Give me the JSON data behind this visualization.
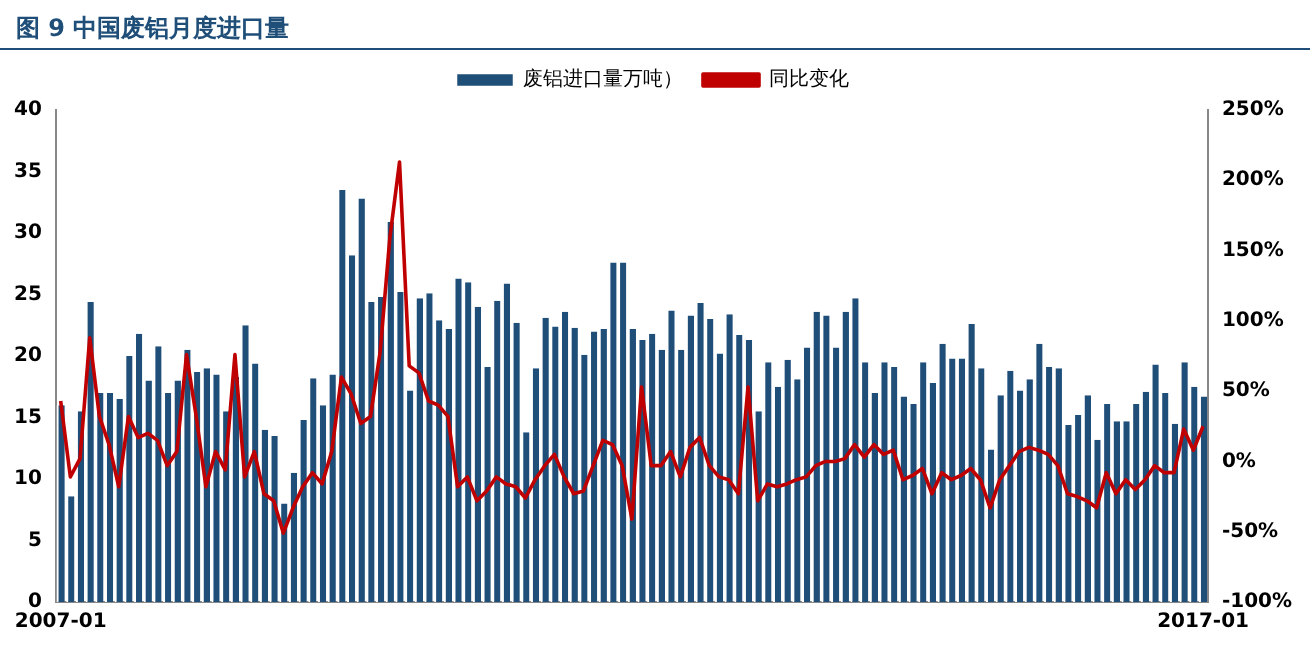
{
  "chart_data": {
    "type": "bar",
    "title": "图 9 中国废铝月度进口量",
    "categories": [
      "2007-01",
      null,
      null,
      null,
      null,
      null,
      null,
      null,
      null,
      null,
      null,
      null,
      null,
      null,
      null,
      null,
      null,
      null,
      null,
      null,
      null,
      null,
      null,
      null,
      null,
      null,
      null,
      null,
      null,
      null,
      null,
      null,
      null,
      null,
      null,
      null,
      null,
      null,
      null,
      null,
      null,
      null,
      null,
      null,
      null,
      null,
      null,
      null,
      null,
      null,
      null,
      null,
      null,
      null,
      null,
      null,
      null,
      null,
      null,
      null,
      null,
      null,
      null,
      null,
      null,
      null,
      null,
      null,
      null,
      null,
      null,
      null,
      null,
      null,
      null,
      null,
      null,
      null,
      null,
      null,
      null,
      null,
      null,
      null,
      null,
      null,
      null,
      null,
      null,
      null,
      null,
      null,
      null,
      null,
      null,
      null,
      null,
      null,
      null,
      null,
      null,
      null,
      null,
      null,
      null,
      null,
      null,
      null,
      null,
      null,
      null,
      null,
      null,
      null,
      null,
      null,
      null,
      null,
      "2017-01"
    ],
    "series": [
      {
        "name": "废铝进口量万吨）",
        "color": "#1f4e79",
        "values": [
          16,
          8.6,
          15.5,
          24.4,
          17,
          17,
          16.5,
          20,
          21.8,
          18,
          20.8,
          17,
          18,
          20.5,
          18.7,
          19,
          18.5,
          15.5,
          18.3,
          22.5,
          19.4,
          14,
          13.5,
          8,
          10.5,
          14.8,
          18.2,
          16,
          18.5,
          33.5,
          28.2,
          32.8,
          24.4,
          24.8,
          30.9,
          25.2,
          17.2,
          24.7,
          25.1,
          22.9,
          22.2,
          26.3,
          26,
          24,
          19.1,
          24.5,
          25.9,
          22.7,
          13.8,
          19,
          23.1,
          22.4,
          23.6,
          22.3,
          20.1,
          22,
          22.2,
          27.6,
          27.6,
          22.2,
          21.3,
          21.8,
          20.5,
          23.7,
          20.5,
          23.3,
          24.3,
          23,
          20.2,
          23.4,
          21.7,
          21.3,
          15.5,
          19.5,
          17.5,
          19.7,
          18.1,
          20.7,
          23.6,
          23.3,
          20.7,
          23.6,
          24.7,
          19.5,
          17,
          19.5,
          19.1,
          16.7,
          16.1,
          19.5,
          17.8,
          21,
          19.8,
          19.8,
          22.6,
          19,
          12.4,
          16.8,
          18.8,
          17.2,
          18.1,
          21,
          19.1,
          19,
          14.4,
          15.2,
          16.8,
          13.2,
          16.1,
          14.7,
          14.7,
          16.1,
          17.1,
          19.3,
          17,
          14.5,
          19.5,
          17.5,
          16.7
        ]
      },
      {
        "name": "同比变化",
        "type": "line",
        "axis": "y2",
        "color": "#c00000",
        "values": [
          43,
          -11,
          2,
          88,
          32,
          12,
          -18,
          32,
          17,
          20,
          15,
          -3,
          7,
          76,
          32,
          -18,
          7,
          -6,
          76,
          -11,
          7,
          -23,
          -28,
          -51,
          -33,
          -18,
          -8,
          -16,
          7,
          60,
          48,
          27,
          32,
          78,
          159,
          213,
          68,
          63,
          43,
          40,
          32,
          -18,
          -11,
          -28,
          -21,
          -11,
          -16,
          -18,
          -26,
          -13,
          -3,
          5,
          -11,
          -23,
          -21,
          -3,
          15,
          12,
          -3,
          -41,
          53,
          -3,
          -3,
          7,
          -11,
          10,
          17,
          -3,
          -11,
          -13,
          -23,
          53,
          -28,
          -16,
          -18,
          -16,
          -13,
          -11,
          -3,
          0,
          0,
          2,
          12,
          3,
          12,
          5,
          8,
          -13,
          -10,
          -5,
          -23,
          -8,
          -13,
          -10,
          -5,
          -13,
          -33,
          -13,
          -3,
          7,
          10,
          8,
          5,
          -3,
          -23,
          -25,
          -28,
          -33,
          -8,
          -23,
          -13,
          -20,
          -13,
          -3,
          -8,
          -8,
          23,
          8,
          25
        ]
      }
    ],
    "ylim": [
      0,
      40
    ],
    "yticks": [
      0,
      5,
      10,
      15,
      20,
      25,
      30,
      35,
      40
    ],
    "y2lim": [
      -100,
      250
    ],
    "y2ticks": [
      {
        "value": -100,
        "label": "-100%"
      },
      {
        "value": -50,
        "label": "-50%"
      },
      {
        "value": 0,
        "label": "0%"
      },
      {
        "value": 50,
        "label": "50%"
      },
      {
        "value": 100,
        "label": "100%"
      },
      {
        "value": 150,
        "label": "150%"
      },
      {
        "value": 200,
        "label": "200%"
      },
      {
        "value": 250,
        "label": "250%"
      }
    ],
    "grid": false,
    "legend": "top"
  }
}
